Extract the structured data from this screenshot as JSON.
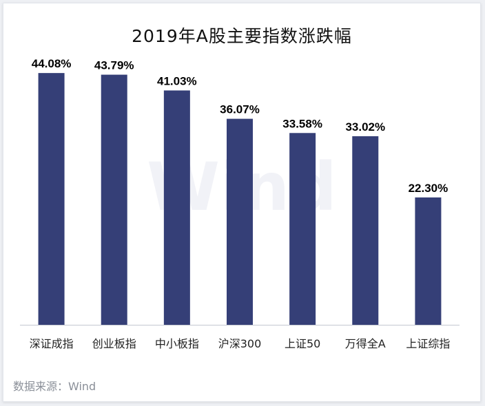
{
  "watermark": "Wind",
  "source": "数据来源：Wind",
  "colors": {
    "bar": "#353f77",
    "axis": "#c4c8d0",
    "value_label": "#000000",
    "category_label": "#222222"
  },
  "chart_data": {
    "type": "bar",
    "title": "2019年A股主要指数涨跌幅",
    "categories": [
      "深证成指",
      "创业板指",
      "中小板指",
      "沪深300",
      "上证50",
      "万得全A",
      "上证综指"
    ],
    "values": [
      44.08,
      43.79,
      41.03,
      36.07,
      33.58,
      33.02,
      22.3
    ],
    "value_labels": [
      "44.08%",
      "43.79%",
      "41.03%",
      "36.07%",
      "33.58%",
      "33.02%",
      "22.30%"
    ],
    "ylim": [
      0,
      50
    ],
    "grid": false,
    "legend": "none"
  }
}
